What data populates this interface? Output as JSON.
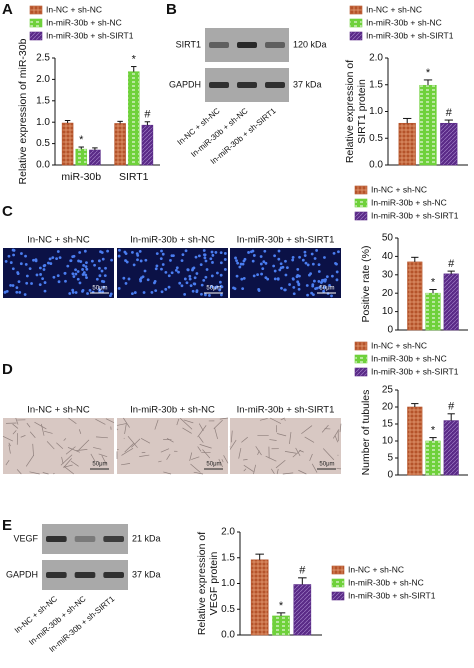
{
  "panel_labels": [
    "A",
    "B",
    "C",
    "D",
    "E"
  ],
  "blot_B": {
    "rows": [
      {
        "protein": "SIRT1",
        "size": "120 kDa"
      },
      {
        "protein": "GAPDH",
        "size": "37 kDa"
      }
    ],
    "lanes": [
      "In-NC + sh-NC",
      "In-miR-30b + sh-NC",
      "In-miR-30b + sh-SIRT1"
    ]
  },
  "blot_E": {
    "rows": [
      {
        "protein": "VEGF",
        "size": "21 kDa"
      },
      {
        "protein": "GAPDH",
        "size": "37 kDa"
      }
    ],
    "lanes": [
      "In-NC + sh-NC",
      "In-miR-30b + sh-NC",
      "In-miR-30b + sh-SIRT1"
    ]
  },
  "micrographs_C": {
    "titles": [
      "In-NC + sh-NC",
      "In-miR-30b + sh-NC",
      "In-miR-30b + sh-SIRT1"
    ],
    "scale": "50μm"
  },
  "micrographs_D": {
    "titles": [
      "In-NC + sh-NC",
      "In-miR-30b + sh-NC",
      "In-miR-30b + sh-SIRT1"
    ],
    "scale": "50μm"
  },
  "chart_data": [
    {
      "type": "bar",
      "ylabel": [
        "Relative expression of miR-30b"
      ],
      "categories": [
        "miR-30b",
        "SIRT1"
      ],
      "series": [
        {
          "name": "In-NC + sh-NC",
          "color": "#b5532a",
          "values": [
            0.98,
            0.97
          ],
          "errors": [
            0.06,
            0.05
          ],
          "marks": [
            null,
            null
          ]
        },
        {
          "name": "In-miR-30b + sh-NC",
          "color": "#6fd13b",
          "values": [
            0.37,
            2.18
          ],
          "errors": [
            0.05,
            0.12
          ],
          "marks": [
            "*",
            "*"
          ]
        },
        {
          "name": "In-miR-30b + sh-SIRT1",
          "color": "#5a2a87",
          "values": [
            0.35,
            0.93
          ],
          "errors": [
            0.05,
            0.08
          ],
          "marks": [
            null,
            "#"
          ]
        }
      ],
      "ylim": [
        0,
        2.5
      ],
      "yticks": [
        {
          "value": 0,
          "label": "0.0"
        },
        {
          "value": 0.5,
          "label": "0.5"
        },
        {
          "value": 1,
          "label": "1.0"
        },
        {
          "value": 1.5,
          "label": "1.5"
        },
        {
          "value": 2,
          "label": "2.0"
        },
        {
          "value": 2.5,
          "label": "2.5"
        }
      ]
    },
    {
      "type": "bar",
      "ylabel": [
        "Relative expression of",
        "SIRT1 protein"
      ],
      "categories": [
        null
      ],
      "series": [
        {
          "name": "In-NC + sh-NC",
          "color": "#b5532a",
          "values": [
            0.78
          ],
          "errors": [
            0.09
          ],
          "marks": [
            null
          ]
        },
        {
          "name": "In-miR-30b + sh-NC",
          "color": "#6fd13b",
          "values": [
            1.49
          ],
          "errors": [
            0.1
          ],
          "marks": [
            "*"
          ]
        },
        {
          "name": "In-miR-30b + sh-SIRT1",
          "color": "#5a2a87",
          "values": [
            0.78
          ],
          "errors": [
            0.06
          ],
          "marks": [
            "#"
          ]
        }
      ],
      "ylim": [
        0,
        2
      ],
      "yticks": [
        {
          "value": 0,
          "label": "0.0"
        },
        {
          "value": 0.5,
          "label": "0.5"
        },
        {
          "value": 1,
          "label": "1.0"
        },
        {
          "value": 1.5,
          "label": "1.5"
        },
        {
          "value": 2,
          "label": "2.0"
        }
      ]
    },
    {
      "type": "bar",
      "ylabel": [
        "Positive rate (%)"
      ],
      "categories": [
        null
      ],
      "series": [
        {
          "name": "In-NC + sh-NC",
          "color": "#b5532a",
          "values": [
            37
          ],
          "errors": [
            2.5
          ],
          "marks": [
            null
          ]
        },
        {
          "name": "In-miR-30b + sh-NC",
          "color": "#6fd13b",
          "values": [
            20
          ],
          "errors": [
            2
          ],
          "marks": [
            "*"
          ]
        },
        {
          "name": "In-miR-30b + sh-SIRT1",
          "color": "#5a2a87",
          "values": [
            30.5
          ],
          "errors": [
            1.5
          ],
          "marks": [
            "#"
          ]
        }
      ],
      "ylim": [
        0,
        50
      ],
      "yticks": [
        0,
        10,
        20,
        30,
        40,
        50
      ]
    },
    {
      "type": "bar",
      "ylabel": [
        "Number of tubules"
      ],
      "categories": [
        null
      ],
      "series": [
        {
          "name": "In-NC + sh-NC",
          "color": "#b5532a",
          "values": [
            20
          ],
          "errors": [
            1
          ],
          "marks": [
            null
          ]
        },
        {
          "name": "In-miR-30b + sh-NC",
          "color": "#6fd13b",
          "values": [
            10
          ],
          "errors": [
            1
          ],
          "marks": [
            "*"
          ]
        },
        {
          "name": "In-miR-30b + sh-SIRT1",
          "color": "#5a2a87",
          "values": [
            16
          ],
          "errors": [
            2
          ],
          "marks": [
            "#"
          ]
        }
      ],
      "ylim": [
        0,
        25
      ],
      "yticks": [
        0,
        5,
        10,
        15,
        20,
        25
      ]
    },
    {
      "type": "bar",
      "ylabel": [
        "Relative expression of",
        "VEGF protein"
      ],
      "categories": [
        null
      ],
      "series": [
        {
          "name": "In-NC + sh-NC",
          "color": "#b5532a",
          "values": [
            1.46
          ],
          "errors": [
            0.11
          ],
          "marks": [
            null
          ]
        },
        {
          "name": "In-miR-30b + sh-NC",
          "color": "#6fd13b",
          "values": [
            0.37
          ],
          "errors": [
            0.06
          ],
          "marks": [
            "*"
          ]
        },
        {
          "name": "In-miR-30b + sh-SIRT1",
          "color": "#5a2a87",
          "values": [
            0.98
          ],
          "errors": [
            0.13
          ],
          "marks": [
            "#"
          ]
        }
      ],
      "ylim": [
        0,
        2
      ],
      "yticks": [
        {
          "value": 0,
          "label": "0.0"
        },
        {
          "value": 0.5,
          "label": "0.5"
        },
        {
          "value": 1,
          "label": "1.0"
        },
        {
          "value": 1.5,
          "label": "1.5"
        },
        {
          "value": 2,
          "label": "2.0"
        }
      ]
    }
  ]
}
